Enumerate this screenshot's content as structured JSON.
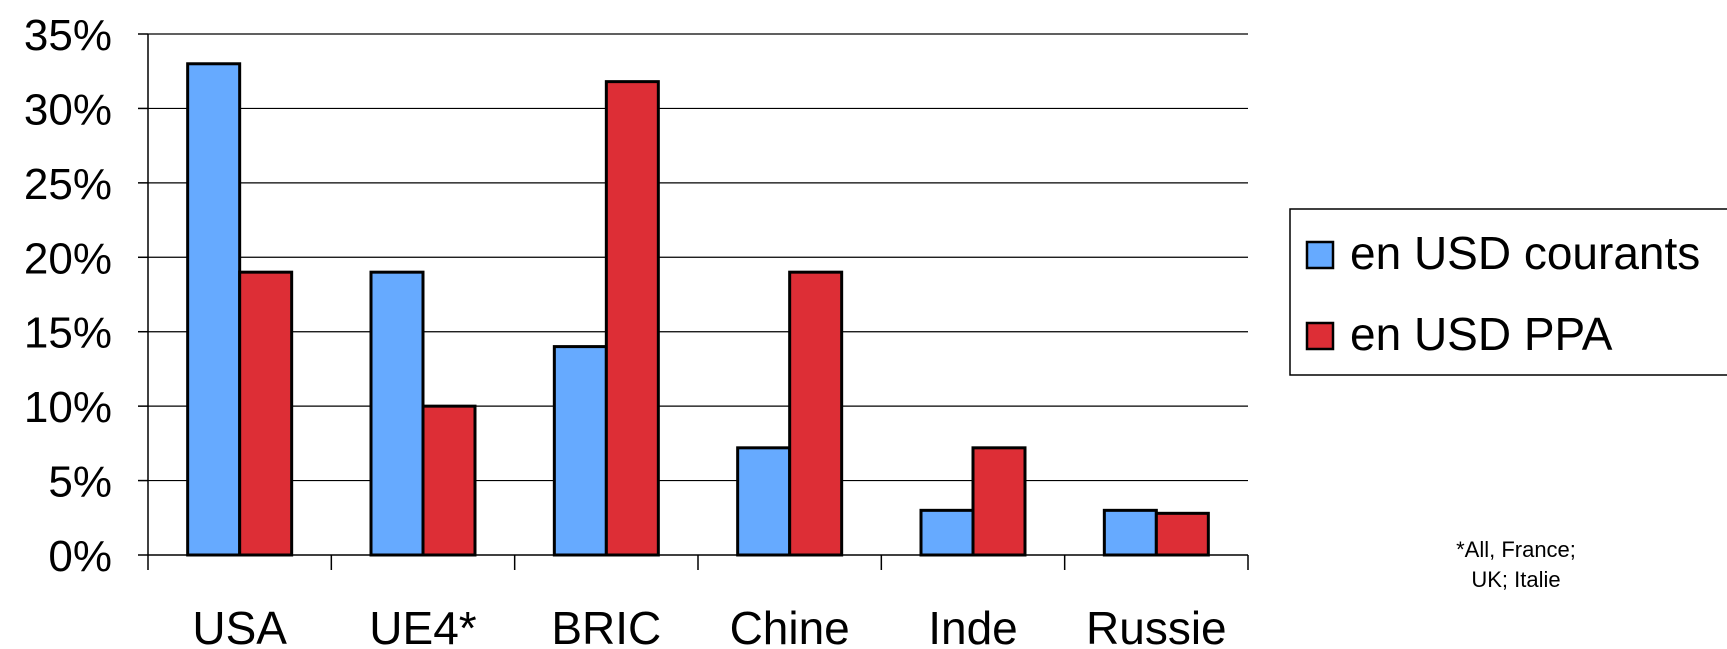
{
  "chart_data": {
    "type": "bar",
    "categories": [
      "USA",
      "UE4*",
      "BRIC",
      "Chine",
      "Inde",
      "Russie"
    ],
    "series": [
      {
        "name": "en USD courants",
        "color": "#66aaff",
        "values": [
          33,
          19,
          14,
          7.2,
          3,
          3
        ]
      },
      {
        "name": "en USD PPA",
        "color": "#dd2e36",
        "values": [
          19,
          10,
          31.8,
          19,
          7.2,
          2.8
        ]
      }
    ],
    "ylim": [
      0,
      35
    ],
    "yticks": [
      0,
      5,
      10,
      15,
      20,
      25,
      30,
      35
    ],
    "ytick_labels": [
      "0%",
      "5%",
      "10%",
      "15%",
      "20%",
      "25%",
      "30%",
      "35%"
    ],
    "grid": true,
    "legend_position": "right",
    "title": "",
    "xlabel": "",
    "ylabel": "",
    "note_lines": [
      "*All, France;",
      "UK; Italie"
    ]
  }
}
